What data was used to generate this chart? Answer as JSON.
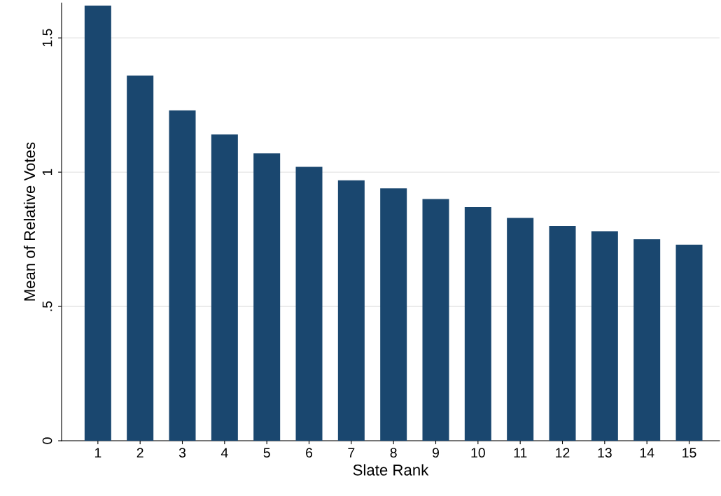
{
  "chart_data": {
    "type": "bar",
    "xlabel": "Slate Rank",
    "ylabel": "Mean of Relative Votes",
    "categories": [
      "1",
      "2",
      "3",
      "4",
      "5",
      "6",
      "7",
      "8",
      "9",
      "10",
      "11",
      "12",
      "13",
      "14",
      "15"
    ],
    "values": [
      1.62,
      1.36,
      1.23,
      1.14,
      1.07,
      1.02,
      0.97,
      0.94,
      0.9,
      0.87,
      0.83,
      0.8,
      0.78,
      0.75,
      0.73
    ],
    "color": "#1a476f",
    "ylim": [
      0,
      1.63
    ],
    "yticks": [
      0,
      {
        "value": 0.5,
        "label": ".5"
      },
      1,
      1.5
    ],
    "grid": "y"
  }
}
